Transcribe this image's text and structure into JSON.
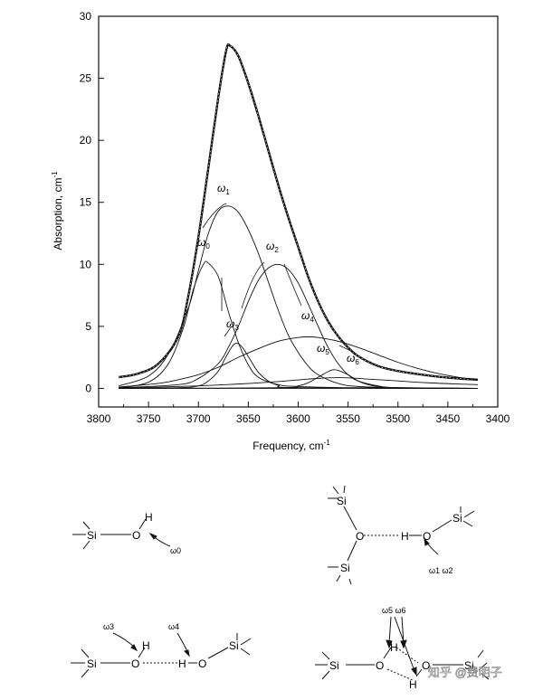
{
  "chart_data": {
    "type": "line",
    "title": "",
    "xlabel": "Frequency, cm",
    "xlabel_superscript": "-1",
    "ylabel": "Absorption, cm",
    "ylabel_superscript": "-1",
    "xlim": [
      3800,
      3400
    ],
    "ylim": [
      -1.5,
      30
    ],
    "x_reversed": true,
    "x_ticks": [
      3800,
      3750,
      3700,
      3650,
      3600,
      3550,
      3500,
      3450,
      3400
    ],
    "y_ticks": [
      0,
      5,
      10,
      15,
      20,
      25,
      30
    ],
    "grid": false,
    "legend": "none",
    "series": [
      {
        "key": "total",
        "values": [
          [
            3780,
            0.9
          ],
          [
            3760,
            1.2
          ],
          [
            3740,
            2.0
          ],
          [
            3720,
            4.2
          ],
          [
            3710,
            7.5
          ],
          [
            3700,
            12.2
          ],
          [
            3690,
            17.8
          ],
          [
            3680,
            23.5
          ],
          [
            3672,
            27.3
          ],
          [
            3668,
            27.6
          ],
          [
            3660,
            26.8
          ],
          [
            3650,
            24.6
          ],
          [
            3640,
            22.0
          ],
          [
            3630,
            19.2
          ],
          [
            3620,
            16.4
          ],
          [
            3610,
            13.8
          ],
          [
            3600,
            11.4
          ],
          [
            3590,
            9.0
          ],
          [
            3580,
            7.0
          ],
          [
            3570,
            5.4
          ],
          [
            3560,
            4.2
          ],
          [
            3550,
            3.3
          ],
          [
            3540,
            2.6
          ],
          [
            3520,
            1.8
          ],
          [
            3500,
            1.4
          ],
          [
            3480,
            1.15
          ],
          [
            3460,
            0.95
          ],
          [
            3440,
            0.8
          ],
          [
            3420,
            0.7
          ]
        ]
      },
      {
        "key": "w0",
        "values": [
          [
            3780,
            0.05
          ],
          [
            3750,
            0.5
          ],
          [
            3730,
            2.0
          ],
          [
            3715,
            4.9
          ],
          [
            3705,
            8.0
          ],
          [
            3695,
            10.0
          ],
          [
            3690,
            10.1
          ],
          [
            3680,
            9.0
          ],
          [
            3670,
            6.2
          ],
          [
            3660,
            3.7
          ],
          [
            3650,
            1.9
          ],
          [
            3640,
            0.9
          ],
          [
            3620,
            0.3
          ],
          [
            3600,
            0.15
          ],
          [
            3550,
            0.05
          ],
          [
            3420,
            0.0
          ]
        ]
      },
      {
        "key": "w1",
        "values": [
          [
            3780,
            0.2
          ],
          [
            3750,
            1.0
          ],
          [
            3730,
            2.8
          ],
          [
            3710,
            6.5
          ],
          [
            3700,
            9.5
          ],
          [
            3690,
            12.5
          ],
          [
            3680,
            14.3
          ],
          [
            3670,
            14.7
          ],
          [
            3660,
            14.2
          ],
          [
            3650,
            12.8
          ],
          [
            3640,
            10.9
          ],
          [
            3630,
            8.6
          ],
          [
            3620,
            6.3
          ],
          [
            3610,
            4.3
          ],
          [
            3600,
            2.9
          ],
          [
            3590,
            1.8
          ],
          [
            3580,
            1.1
          ],
          [
            3560,
            0.4
          ],
          [
            3540,
            0.15
          ],
          [
            3500,
            0.05
          ],
          [
            3420,
            0.0
          ]
        ]
      },
      {
        "key": "w2",
        "values": [
          [
            3780,
            0.05
          ],
          [
            3720,
            0.3
          ],
          [
            3700,
            0.8
          ],
          [
            3680,
            2.0
          ],
          [
            3670,
            3.3
          ],
          [
            3660,
            5.0
          ],
          [
            3650,
            7.0
          ],
          [
            3640,
            8.7
          ],
          [
            3630,
            9.7
          ],
          [
            3620,
            10.0
          ],
          [
            3610,
            9.6
          ],
          [
            3600,
            8.5
          ],
          [
            3590,
            6.8
          ],
          [
            3580,
            5.0
          ],
          [
            3570,
            3.3
          ],
          [
            3560,
            2.0
          ],
          [
            3550,
            1.1
          ],
          [
            3540,
            0.6
          ],
          [
            3520,
            0.2
          ],
          [
            3500,
            0.05
          ],
          [
            3420,
            0.0
          ]
        ]
      },
      {
        "key": "w3",
        "values": [
          [
            3780,
            0.0
          ],
          [
            3720,
            0.05
          ],
          [
            3700,
            0.2
          ],
          [
            3690,
            0.6
          ],
          [
            3680,
            1.4
          ],
          [
            3672,
            2.6
          ],
          [
            3665,
            3.5
          ],
          [
            3660,
            3.6
          ],
          [
            3655,
            3.2
          ],
          [
            3648,
            2.3
          ],
          [
            3640,
            1.3
          ],
          [
            3630,
            0.6
          ],
          [
            3620,
            0.25
          ],
          [
            3600,
            0.05
          ],
          [
            3420,
            0.0
          ]
        ]
      },
      {
        "key": "w4",
        "values": [
          [
            3780,
            0.1
          ],
          [
            3740,
            0.4
          ],
          [
            3720,
            0.7
          ],
          [
            3700,
            1.1
          ],
          [
            3680,
            1.7
          ],
          [
            3660,
            2.5
          ],
          [
            3640,
            3.2
          ],
          [
            3620,
            3.8
          ],
          [
            3600,
            4.1
          ],
          [
            3590,
            4.15
          ],
          [
            3580,
            4.1
          ],
          [
            3560,
            3.8
          ],
          [
            3540,
            3.3
          ],
          [
            3520,
            2.7
          ],
          [
            3500,
            2.1
          ],
          [
            3480,
            1.6
          ],
          [
            3460,
            1.2
          ],
          [
            3440,
            0.9
          ],
          [
            3420,
            0.7
          ]
        ]
      },
      {
        "key": "w5",
        "values": [
          [
            3780,
            0.0
          ],
          [
            3620,
            0.05
          ],
          [
            3600,
            0.2
          ],
          [
            3590,
            0.45
          ],
          [
            3580,
            0.9
          ],
          [
            3570,
            1.35
          ],
          [
            3565,
            1.5
          ],
          [
            3560,
            1.45
          ],
          [
            3550,
            1.1
          ],
          [
            3540,
            0.6
          ],
          [
            3530,
            0.3
          ],
          [
            3515,
            0.1
          ],
          [
            3500,
            0.05
          ],
          [
            3420,
            0.0
          ]
        ]
      },
      {
        "key": "w6",
        "values": [
          [
            3780,
            0.05
          ],
          [
            3740,
            0.1
          ],
          [
            3700,
            0.2
          ],
          [
            3660,
            0.35
          ],
          [
            3620,
            0.55
          ],
          [
            3590,
            0.75
          ],
          [
            3570,
            0.85
          ],
          [
            3550,
            0.85
          ],
          [
            3530,
            0.75
          ],
          [
            3500,
            0.6
          ],
          [
            3470,
            0.45
          ],
          [
            3440,
            0.35
          ],
          [
            3420,
            0.3
          ]
        ]
      }
    ],
    "annotations": [
      {
        "key": "w0",
        "base": "ω",
        "sub": "0"
      },
      {
        "key": "w1",
        "base": "ω",
        "sub": "1"
      },
      {
        "key": "w2",
        "base": "ω",
        "sub": "2"
      },
      {
        "key": "w3",
        "base": "ω",
        "sub": "3"
      },
      {
        "key": "w4",
        "base": "ω",
        "sub": "4"
      },
      {
        "key": "w5",
        "base": "ω",
        "sub": "5"
      },
      {
        "key": "w6",
        "base": "ω",
        "sub": "6"
      }
    ]
  },
  "structures": {
    "si": "Si",
    "o": "O",
    "h": "H",
    "w0": "ω0",
    "w1w2": "ω1  ω2",
    "w3": "ω3",
    "w4": "ω4",
    "w5w6": "ω5  ω6"
  },
  "watermark": {
    "text": "知乎 @费明子"
  }
}
